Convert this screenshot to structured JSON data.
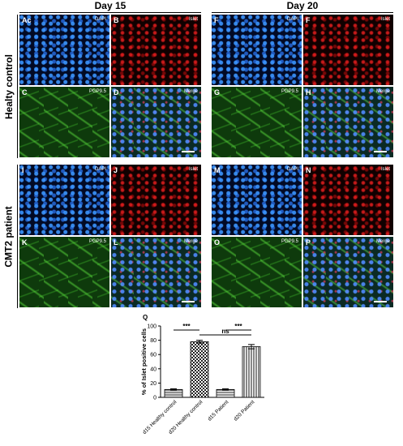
{
  "headers": [
    "Day 15",
    "Day 20"
  ],
  "row_labels": [
    "Healty control",
    "CMT2 patient"
  ],
  "panels": [
    {
      "letter": "Ac",
      "label": "DAPI"
    },
    {
      "letter": "B",
      "label": "Islet"
    },
    {
      "letter": "F",
      "label": "DAPI"
    },
    {
      "letter": "F",
      "label": "Islet"
    },
    {
      "letter": "C",
      "label": "PGP9.5"
    },
    {
      "letter": "D",
      "label": "Merge"
    },
    {
      "letter": "G",
      "label": "PGP9.5"
    },
    {
      "letter": "H",
      "label": "Merge"
    },
    {
      "letter": "I",
      "label": "DAPI"
    },
    {
      "letter": "J",
      "label": "Islet"
    },
    {
      "letter": "M",
      "label": "DAPI"
    },
    {
      "letter": "N",
      "label": "Islet"
    },
    {
      "letter": "K",
      "label": "PGP9.5"
    },
    {
      "letter": "L",
      "label": "Merge"
    },
    {
      "letter": "O",
      "label": "PGP9.5"
    },
    {
      "letter": "P",
      "label": "Merge"
    }
  ],
  "chart_data": {
    "type": "bar",
    "panel_letter": "Q",
    "y_label": "% of Islet positive cells",
    "categories": [
      "d15 Healthy control",
      "d20 Healthy control",
      "d15 Patient",
      "d20 Patient"
    ],
    "values": [
      11,
      78,
      11,
      71
    ],
    "errors": [
      1,
      2,
      1,
      3
    ],
    "ylim": [
      0,
      100
    ],
    "yticks": [
      0,
      20,
      40,
      60,
      80,
      100
    ],
    "annotations": [
      "***",
      "ns",
      "***"
    ]
  }
}
